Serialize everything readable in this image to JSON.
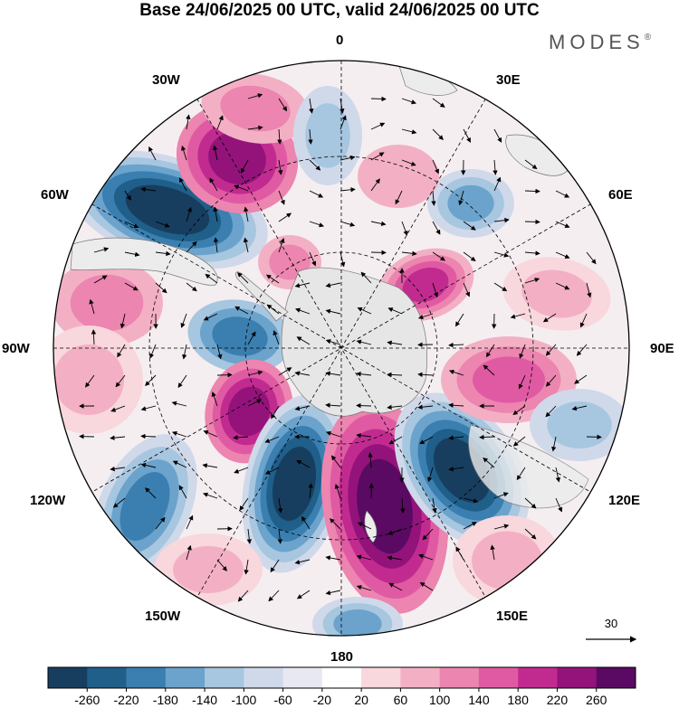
{
  "title": "Base 24/06/2025 00 UTC, valid 24/06/2025 00 UTC",
  "brand": "MODES",
  "brand_mark": "®",
  "longitude_labels": {
    "lon_0": "0",
    "lon_30e": "30E",
    "lon_60e": "60E",
    "lon_90e": "90E",
    "lon_120e": "120E",
    "lon_150e": "150E",
    "lon_180": "180",
    "lon_150w": "150W",
    "lon_120w": "120W",
    "lon_90w": "90W",
    "lon_60w": "60W",
    "lon_30w": "30W"
  },
  "vector_reference": {
    "label": "30"
  },
  "colorbar": {
    "ticks": [
      "-260",
      "-220",
      "-180",
      "-140",
      "-100",
      "-60",
      "-20",
      "20",
      "60",
      "100",
      "140",
      "180",
      "220",
      "260"
    ],
    "colors": [
      "#173e5f",
      "#1f5f8a",
      "#3a7fb0",
      "#6ba3cc",
      "#a7c6df",
      "#cfd9ea",
      "#e8e8f2",
      "#ffffff",
      "#f8d7dd",
      "#f3b0c4",
      "#ec85af",
      "#e05aa3",
      "#c12b8f",
      "#93137b",
      "#5a0a62"
    ]
  },
  "map_colors": {
    "land": "#e6e6e6",
    "coast": "#777777",
    "grid": "#000000"
  }
}
